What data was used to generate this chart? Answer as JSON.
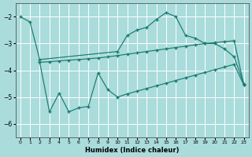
{
  "xlabel": "Humidex (Indice chaleur)",
  "bg_color": "#aadcdc",
  "line_color": "#1a7a6e",
  "grid_color": "#c8e8e8",
  "xlim": [
    -0.5,
    23.5
  ],
  "ylim": [
    -6.5,
    -1.5
  ],
  "yticks": [
    -6,
    -5,
    -4,
    -3,
    -2
  ],
  "xticks": [
    0,
    1,
    2,
    3,
    4,
    5,
    6,
    7,
    8,
    9,
    10,
    11,
    12,
    13,
    14,
    15,
    16,
    17,
    18,
    19,
    20,
    21,
    22,
    23
  ],
  "line1_x": [
    0,
    1,
    2,
    10,
    11,
    12,
    13,
    14,
    15,
    16,
    17,
    18,
    19,
    20,
    21,
    22,
    23
  ],
  "line1_y": [
    -2.0,
    -2.2,
    -3.6,
    -3.3,
    -2.7,
    -2.5,
    -2.4,
    -2.1,
    -1.85,
    -2.0,
    -2.7,
    -2.8,
    -3.0,
    -3.0,
    -3.2,
    -3.5,
    -4.5
  ],
  "line2_x": [
    2,
    3,
    4,
    5,
    6,
    7,
    8,
    9,
    10,
    11,
    12,
    13,
    14,
    15,
    16,
    17,
    18,
    19,
    20,
    21,
    22,
    23
  ],
  "line2_y": [
    -3.7,
    -3.68,
    -3.65,
    -3.62,
    -3.6,
    -3.57,
    -3.54,
    -3.5,
    -3.45,
    -3.4,
    -3.35,
    -3.3,
    -3.25,
    -3.2,
    -3.15,
    -3.1,
    -3.05,
    -3.0,
    -2.97,
    -2.93,
    -2.9,
    -4.55
  ],
  "line3_x": [
    2,
    3,
    4,
    5,
    6,
    7,
    8,
    9,
    10,
    11,
    12,
    13,
    14,
    15,
    16,
    17,
    18,
    19,
    20,
    21,
    22,
    23
  ],
  "line3_y": [
    -3.7,
    -5.55,
    -4.85,
    -5.55,
    -5.4,
    -5.35,
    -4.1,
    -4.72,
    -5.0,
    -4.88,
    -4.78,
    -4.68,
    -4.58,
    -4.48,
    -4.38,
    -4.28,
    -4.18,
    -4.08,
    -3.98,
    -3.88,
    -3.78,
    -4.55
  ]
}
